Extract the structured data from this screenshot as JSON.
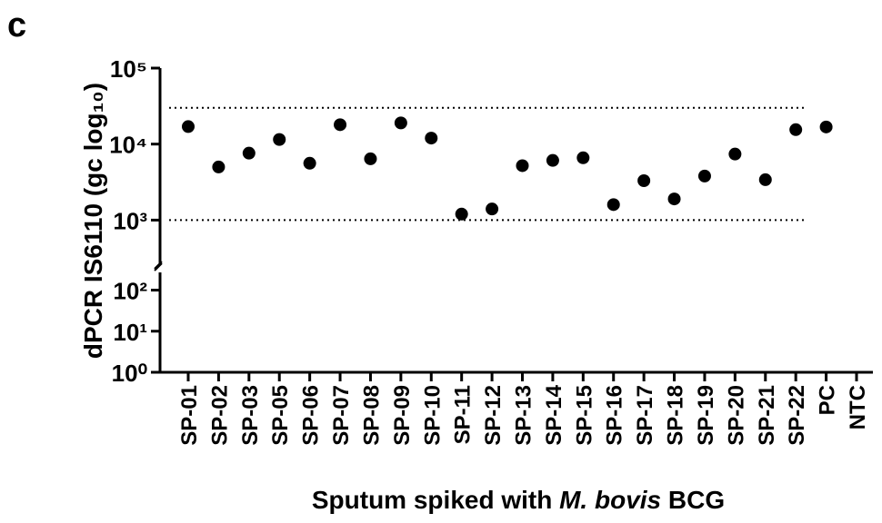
{
  "panel_label": "c",
  "chart_data": {
    "type": "scatter",
    "ylabel": "dPCR IS6110 (gc log₁₀)",
    "xlabel": [
      "Sputum spiked with ",
      "M. bovis",
      " BCG"
    ],
    "categories": [
      "SP-01",
      "SP-02",
      "SP-03",
      "SP-05",
      "SP-06",
      "SP-07",
      "SP-08",
      "SP-09",
      "SP-10",
      "SP-11",
      "SP-12",
      "SP-13",
      "SP-14",
      "SP-15",
      "SP-16",
      "SP-17",
      "SP-18",
      "SP-19",
      "SP-20",
      "SP-21",
      "SP-22",
      "PC",
      "NTC"
    ],
    "values": [
      17000,
      5000,
      7600,
      11500,
      5600,
      18000,
      6400,
      19000,
      12000,
      1200,
      1400,
      5200,
      6100,
      6600,
      1600,
      3300,
      1900,
      3800,
      7400,
      3400,
      15500,
      16800,
      null
    ],
    "color": "#000000",
    "log_scale": true,
    "ylim": [
      1,
      100000
    ],
    "y_break": 270,
    "yticks": [
      {
        "value": 1,
        "label": "10⁰"
      },
      {
        "value": 10,
        "label": "10¹"
      },
      {
        "value": 100,
        "label": "10²"
      },
      {
        "value": 1000,
        "label": "10³"
      },
      {
        "value": 10000,
        "label": "10⁴"
      },
      {
        "value": 100000,
        "label": "10⁵"
      }
    ],
    "reference_lines": [
      30000,
      1000
    ]
  }
}
